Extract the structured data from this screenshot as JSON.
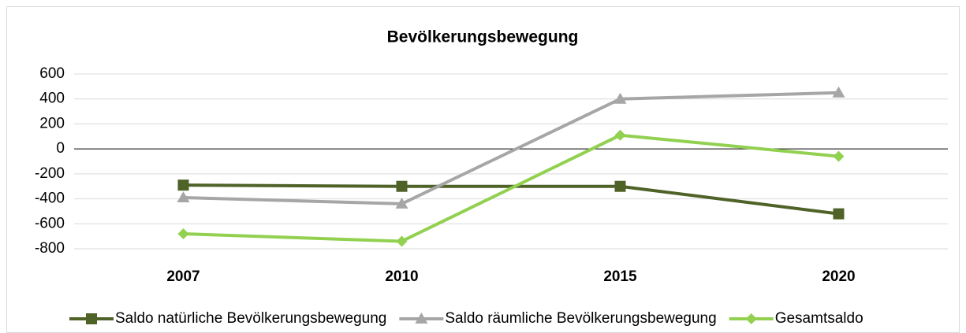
{
  "chart_data": {
    "type": "line",
    "title": "Bevölkerungsbewegung",
    "categories": [
      "2007",
      "2010",
      "2015",
      "2020"
    ],
    "series": [
      {
        "name": "Saldo natürliche Bevölkerungsbewegung",
        "color": "#4f6228",
        "marker": "square",
        "values": [
          -290,
          -300,
          -300,
          -520
        ]
      },
      {
        "name": "Saldo räumliche Bevölkerungsbewegung",
        "color": "#a6a6a6",
        "marker": "triangle",
        "values": [
          -390,
          -440,
          400,
          450
        ]
      },
      {
        "name": "Gesamtsaldo",
        "color": "#92d050",
        "marker": "diamond",
        "values": [
          -680,
          -740,
          110,
          -60
        ]
      }
    ],
    "ylim": [
      -800,
      600
    ],
    "yticks": [
      600,
      400,
      200,
      0,
      -200,
      -400,
      -600,
      -800
    ],
    "grid": true,
    "legend": "bottom"
  }
}
